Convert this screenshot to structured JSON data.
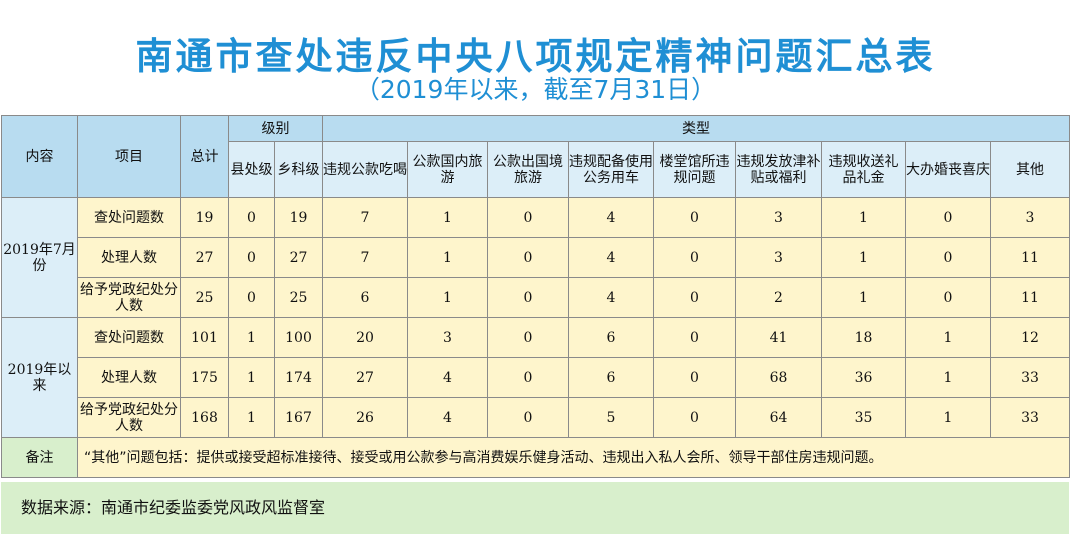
{
  "title": "南通市查处违反中央八项规定精神问题汇总表",
  "subtitle": "（2019年以来，截至7月31日）",
  "headers": {
    "content": "内容",
    "item": "项目",
    "total": "总计",
    "level": "级别",
    "levels": [
      "县处级",
      "乡科级"
    ],
    "type": "类型",
    "types": [
      "违规公款吃喝",
      "公款国内旅游",
      "公款出国境旅游",
      "违规配备使用公务用车",
      "楼堂馆所违规问题",
      "违规发放津补贴或福利",
      "违规收送礼品礼金",
      "大办婚丧喜庆",
      "其他"
    ]
  },
  "groups": [
    {
      "period": "2019年7月份",
      "rows": [
        {
          "item": "查处问题数",
          "values": [
            "19",
            "0",
            "19",
            "7",
            "1",
            "0",
            "4",
            "0",
            "3",
            "1",
            "0",
            "3"
          ]
        },
        {
          "item": "处理人数",
          "values": [
            "27",
            "0",
            "27",
            "7",
            "1",
            "0",
            "4",
            "0",
            "3",
            "1",
            "0",
            "11"
          ]
        },
        {
          "item": "给予党政纪处分人数",
          "values": [
            "25",
            "0",
            "25",
            "6",
            "1",
            "0",
            "4",
            "0",
            "2",
            "1",
            "0",
            "11"
          ]
        }
      ]
    },
    {
      "period": "2019年以来",
      "rows": [
        {
          "item": "查处问题数",
          "values": [
            "101",
            "1",
            "100",
            "20",
            "3",
            "0",
            "6",
            "0",
            "41",
            "18",
            "1",
            "12"
          ]
        },
        {
          "item": "处理人数",
          "values": [
            "175",
            "1",
            "174",
            "27",
            "4",
            "0",
            "6",
            "0",
            "68",
            "36",
            "1",
            "33"
          ]
        },
        {
          "item": "给予党政纪处分人数",
          "values": [
            "168",
            "1",
            "167",
            "26",
            "4",
            "0",
            "5",
            "0",
            "64",
            "35",
            "1",
            "33"
          ]
        }
      ]
    }
  ],
  "note": {
    "label": "备注",
    "text": "“其他”问题包括：提供或接受超标准接待、接受或用公款参与高消费娱乐健身活动、违规出入私人会所、领导干部住房违规问题。"
  },
  "footer": "数据来源：南通市纪委监委党风政风监督室"
}
